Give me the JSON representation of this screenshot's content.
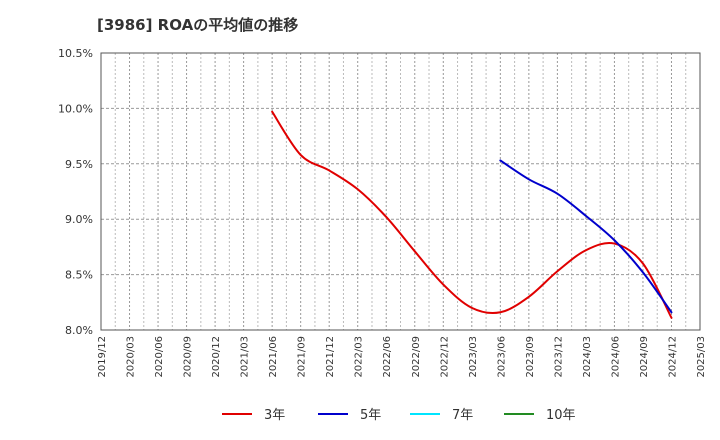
{
  "chart_data": {
    "type": "line",
    "title": "[3986]  ROAの平均値の推移",
    "xlabel": "",
    "ylabel": "",
    "ylim": [
      8.0,
      10.5
    ],
    "yticks": [
      8.0,
      8.5,
      9.0,
      9.5,
      10.0,
      10.5
    ],
    "ytick_labels": [
      "8.0%",
      "8.5%",
      "9.0%",
      "9.5%",
      "10.0%",
      "10.5%"
    ],
    "x_categories": [
      "2019/12",
      "2020/03",
      "2020/06",
      "2020/09",
      "2020/12",
      "2021/03",
      "2021/06",
      "2021/09",
      "2021/12",
      "2022/03",
      "2022/06",
      "2022/09",
      "2022/12",
      "2023/03",
      "2023/06",
      "2023/09",
      "2023/12",
      "2024/03",
      "2024/06",
      "2024/09",
      "2024/12",
      "2025/03"
    ],
    "grid": true,
    "legend_position": "bottom",
    "series": [
      {
        "name": "3年",
        "color": "#e00000",
        "x": [
          "2021/06",
          "2021/09",
          "2021/12",
          "2022/03",
          "2022/06",
          "2022/09",
          "2022/12",
          "2023/03",
          "2023/06",
          "2023/09",
          "2023/12",
          "2024/03",
          "2024/06",
          "2024/09",
          "2024/12"
        ],
        "values": [
          9.97,
          9.58,
          9.44,
          9.27,
          9.02,
          8.71,
          8.41,
          8.2,
          8.16,
          8.3,
          8.53,
          8.72,
          8.78,
          8.6,
          8.11
        ]
      },
      {
        "name": "5年",
        "color": "#0000cc",
        "x": [
          "2023/06",
          "2023/09",
          "2023/12",
          "2024/03",
          "2024/06",
          "2024/09",
          "2024/12"
        ],
        "values": [
          9.53,
          9.36,
          9.23,
          9.03,
          8.81,
          8.52,
          8.16
        ]
      },
      {
        "name": "7年",
        "color": "#00e5ff",
        "x": [],
        "values": []
      },
      {
        "name": "10年",
        "color": "#228b22",
        "x": [],
        "values": []
      }
    ]
  }
}
